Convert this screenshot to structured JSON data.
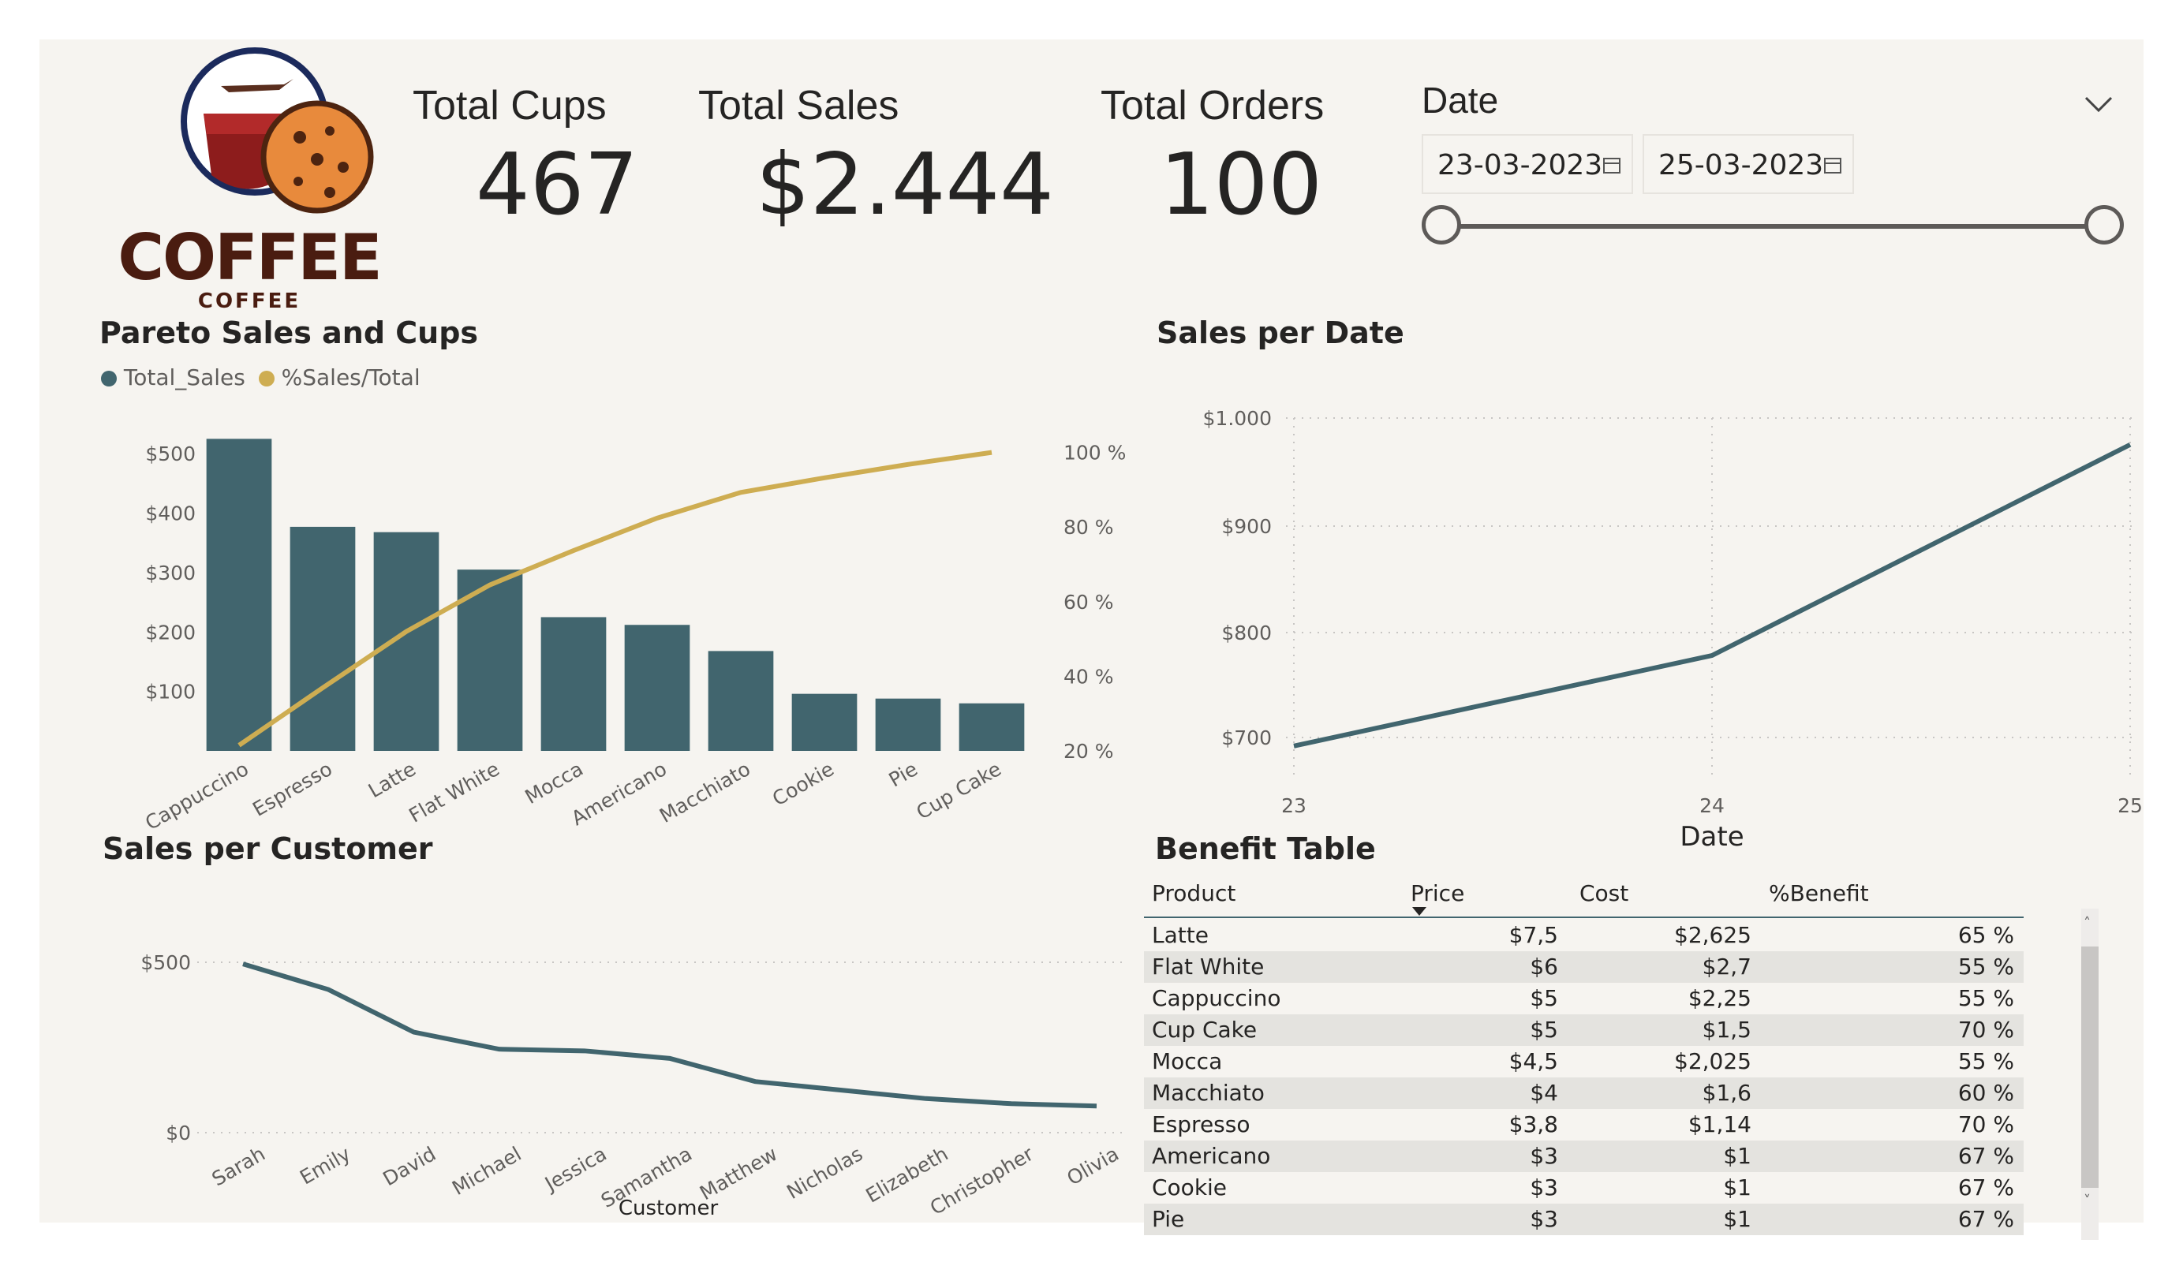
{
  "logo": {
    "text_main": "COFFEE",
    "text_sub": "COFFEE"
  },
  "kpis": [
    {
      "label": "Total Cups",
      "value": "467"
    },
    {
      "label": "Total Sales",
      "value": "$2.444"
    },
    {
      "label": "Total Orders",
      "value": "100"
    }
  ],
  "date_slicer": {
    "title": "Date",
    "start": "23-03-2023",
    "end": "25-03-2023",
    "icons": {
      "toggle": "chevron-down-icon",
      "calendar": "calendar-icon"
    },
    "range_fraction": [
      0,
      1
    ]
  },
  "pareto": {
    "title": "Pareto Sales and Cups",
    "legend": [
      {
        "name": "Total_Sales",
        "color": "#41656e"
      },
      {
        "name": "%Sales/Total",
        "color": "#cead52"
      }
    ]
  },
  "sales_per_date": {
    "title": "Sales per Date"
  },
  "sales_per_customer": {
    "title": "Sales per Customer"
  },
  "benefit_table": {
    "title": "Benefit Table",
    "columns": [
      "Product",
      "Price",
      "Cost",
      "%Benefit"
    ],
    "sort_column": "Price",
    "rows": [
      [
        "Latte",
        "$7,5",
        "$2,625",
        "65 %"
      ],
      [
        "Flat White",
        "$6",
        "$2,7",
        "55 %"
      ],
      [
        "Cappuccino",
        "$5",
        "$2,25",
        "55 %"
      ],
      [
        "Cup Cake",
        "$5",
        "$1,5",
        "70 %"
      ],
      [
        "Mocca",
        "$4,5",
        "$2,025",
        "55 %"
      ],
      [
        "Macchiato",
        "$4",
        "$1,6",
        "60 %"
      ],
      [
        "Espresso",
        "$3,8",
        "$1,14",
        "70 %"
      ],
      [
        "Americano",
        "$3",
        "$1",
        "67 %"
      ],
      [
        "Cookie",
        "$3",
        "$1",
        "67 %"
      ],
      [
        "Pie",
        "$3",
        "$1",
        "67 %"
      ]
    ]
  },
  "chart_data": [
    {
      "type": "bar",
      "title": "Pareto Sales and Cups",
      "categories": [
        "Cappuccino",
        "Espresso",
        "Latte",
        "Flat White",
        "Mocca",
        "Americano",
        "Macchiato",
        "Cookie",
        "Pie",
        "Cup Cake"
      ],
      "series": [
        {
          "name": "Total_Sales",
          "type": "bar",
          "axis": "left",
          "color": "#41656e",
          "values": [
            525,
            377,
            368,
            305,
            225,
            212,
            168,
            96,
            88,
            80
          ]
        },
        {
          "name": "%Sales/Total",
          "type": "line",
          "axis": "right",
          "color": "#cead52",
          "values": [
            21.5,
            36.9,
            52.0,
            64.5,
            73.7,
            82.4,
            89.3,
            93.2,
            96.8,
            100
          ]
        }
      ],
      "y_left": {
        "ticks": [
          "$100",
          "$200",
          "$300",
          "$400",
          "$500"
        ],
        "range": [
          0,
          560
        ]
      },
      "y_right": {
        "ticks": [
          "20 %",
          "40 %",
          "60 %",
          "80 %",
          "100 %"
        ],
        "range": [
          20,
          105
        ]
      },
      "legend": "top-left",
      "grid": false
    },
    {
      "type": "line",
      "title": "Sales per Date",
      "x": [
        "23",
        "24",
        "25"
      ],
      "xlabel": "Date",
      "series": [
        {
          "name": "Sales",
          "color": "#41656e",
          "values": [
            692,
            777,
            975
          ]
        }
      ],
      "y_ticks": [
        "$700",
        "$800",
        "$900",
        "$1.000"
      ],
      "ylim": [
        660,
        1000
      ],
      "grid": true
    },
    {
      "type": "line",
      "title": "Sales per Customer",
      "categories": [
        "Sarah",
        "Emily",
        "David",
        "Michael",
        "Jessica",
        "Samantha",
        "Matthew",
        "Nicholas",
        "Elizabeth",
        "Christopher",
        "Olivia"
      ],
      "xlabel": "Customer",
      "series": [
        {
          "name": "Sales",
          "color": "#41656e",
          "values": [
            495,
            420,
            295,
            245,
            240,
            218,
            150,
            125,
            100,
            85,
            78
          ]
        }
      ],
      "y_ticks": [
        "$0",
        "$500"
      ],
      "ylim": [
        0,
        500
      ],
      "grid": true
    }
  ]
}
